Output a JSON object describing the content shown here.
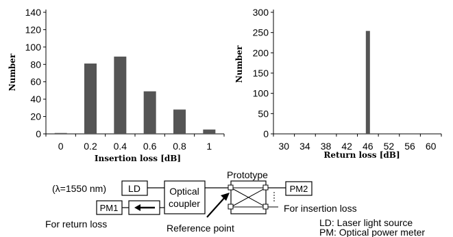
{
  "chart_data": [
    {
      "type": "bar",
      "categories": [
        "0",
        "0.2",
        "0.4",
        "0.6",
        "0.8",
        "1"
      ],
      "values": [
        1,
        81,
        89,
        49,
        28,
        5
      ],
      "xlabel": "Insertion loss [dB]",
      "ylabel": "Number",
      "ylim": [
        0,
        140
      ],
      "yticks": [
        0,
        20,
        40,
        60,
        80,
        100,
        120,
        140
      ],
      "bar_color": "#555555",
      "grid": false
    },
    {
      "type": "bar",
      "categories": [
        "30",
        "34",
        "38",
        "42",
        "46",
        "52",
        "56",
        "60"
      ],
      "values": [
        0,
        0,
        0,
        0,
        254,
        0,
        0,
        0
      ],
      "xlabel": "Return loss [dB]",
      "ylabel": "Number",
      "ylim": [
        0,
        300
      ],
      "yticks": [
        0,
        50,
        100,
        150,
        200,
        250,
        300
      ],
      "bar_color": "#555555",
      "grid": false
    }
  ],
  "diagram": {
    "wavelength": "(λ=1550 nm)",
    "ld": "LD",
    "pm1": "PM1",
    "pm2": "PM2",
    "coupler_line1": "Optical",
    "coupler_line2": "coupler",
    "prototype": "Prototype",
    "for_insertion": "For insertion loss",
    "for_return": "For return loss",
    "reference_point": "Reference point",
    "legend_ld": "LD: Laser light source",
    "legend_pm": "PM: Optical power meter"
  }
}
